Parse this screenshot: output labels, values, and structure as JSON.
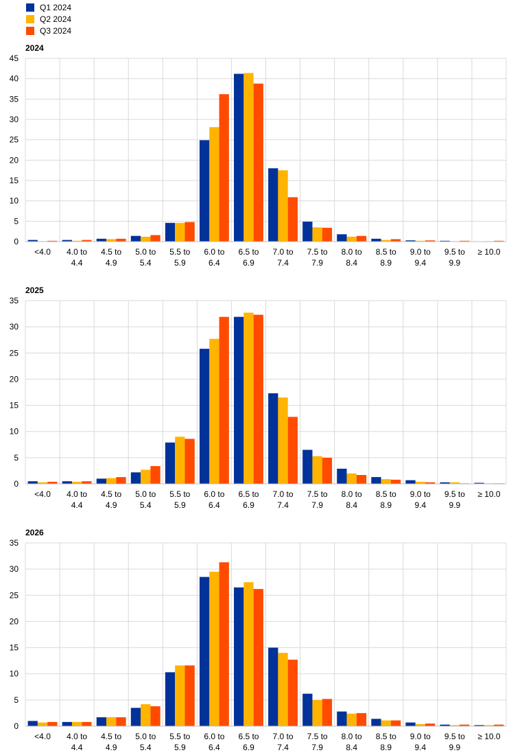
{
  "legend": [
    {
      "label": "Q1 2024",
      "color": "#003299"
    },
    {
      "label": "Q2 2024",
      "color": "#FFB400"
    },
    {
      "label": "Q3 2024",
      "color": "#FF4B00"
    }
  ],
  "chart_data": [
    {
      "type": "bar",
      "title": "2024",
      "categories": [
        "<4.0",
        "4.0 to\n4.4",
        "4.5 to\n4.9",
        "5.0 to\n5.4",
        "5.5 to\n5.9",
        "6.0 to\n6.4",
        "6.5 to\n6.9",
        "7.0 to\n7.4",
        "7.5 to\n7.9",
        "8.0 to\n8.4",
        "8.5 to\n8.9",
        "9.0 to\n9.4",
        "9.5 to\n9.9",
        "≥ 10.0"
      ],
      "series": [
        {
          "name": "Q1 2024",
          "values": [
            0.4,
            0.4,
            0.7,
            1.4,
            4.6,
            24.9,
            41.2,
            18.0,
            4.9,
            1.8,
            0.7,
            0.3,
            0.2,
            0.0
          ]
        },
        {
          "name": "Q2 2024",
          "values": [
            0.1,
            0.2,
            0.6,
            1.2,
            4.6,
            28.1,
            41.4,
            17.5,
            3.5,
            1.2,
            0.4,
            0.2,
            0.1,
            0.1
          ]
        },
        {
          "name": "Q3 2024",
          "values": [
            0.2,
            0.4,
            0.7,
            1.6,
            4.8,
            36.2,
            38.8,
            10.9,
            3.4,
            1.4,
            0.6,
            0.3,
            0.2,
            0.2
          ]
        }
      ],
      "yticks": [
        0,
        5,
        10,
        15,
        20,
        25,
        30,
        35,
        40,
        45
      ],
      "ylim": [
        0,
        45
      ],
      "grid": true
    },
    {
      "type": "bar",
      "title": "2025",
      "categories": [
        "<4.0",
        "4.0 to\n4.4",
        "4.5 to\n4.9",
        "5.0 to\n5.4",
        "5.5 to\n5.9",
        "6.0 to\n6.4",
        "6.5 to\n6.9",
        "7.0 to\n7.4",
        "7.5 to\n7.9",
        "8.0 to\n8.4",
        "8.5 to\n8.9",
        "9.0 to\n9.4",
        "9.5 to\n9.9",
        "≥ 10.0"
      ],
      "series": [
        {
          "name": "Q1 2024",
          "values": [
            0.5,
            0.5,
            1.0,
            2.2,
            7.9,
            25.8,
            31.9,
            17.3,
            6.5,
            2.9,
            1.3,
            0.7,
            0.3,
            0.2
          ]
        },
        {
          "name": "Q2 2024",
          "values": [
            0.3,
            0.4,
            1.1,
            2.7,
            9.0,
            27.7,
            32.7,
            16.5,
            5.3,
            2.0,
            0.9,
            0.4,
            0.3,
            0.1
          ]
        },
        {
          "name": "Q3 2024",
          "values": [
            0.4,
            0.5,
            1.3,
            3.4,
            8.6,
            31.9,
            32.3,
            12.8,
            5.0,
            1.7,
            0.8,
            0.3,
            0.1,
            0.1
          ]
        }
      ],
      "yticks": [
        0,
        5,
        10,
        15,
        20,
        25,
        30,
        35
      ],
      "ylim": [
        0,
        35
      ],
      "grid": true
    },
    {
      "type": "bar",
      "title": "2026",
      "categories": [
        "<4.0",
        "4.0 to\n4.4",
        "4.5 to\n4.9",
        "5.0 to\n5.4",
        "5.5 to\n5.9",
        "6.0 to\n6.4",
        "6.5 to\n6.9",
        "7.0 to\n7.4",
        "7.5 to\n7.9",
        "8.0 to\n8.4",
        "8.5 to\n8.9",
        "9.0 to\n9.4",
        "9.5 to\n9.9",
        "≥ 10.0"
      ],
      "series": [
        {
          "name": "Q1 2024",
          "values": [
            1.0,
            0.8,
            1.7,
            3.5,
            10.3,
            28.5,
            26.5,
            15.0,
            6.2,
            2.8,
            1.4,
            0.7,
            0.3,
            0.2
          ]
        },
        {
          "name": "Q2 2024",
          "values": [
            0.7,
            0.8,
            1.7,
            4.2,
            11.6,
            29.5,
            27.5,
            14.0,
            5.0,
            2.4,
            1.1,
            0.4,
            0.2,
            0.2
          ]
        },
        {
          "name": "Q3 2024",
          "values": [
            0.8,
            0.8,
            1.7,
            3.8,
            11.6,
            31.3,
            26.2,
            12.7,
            5.2,
            2.5,
            1.1,
            0.5,
            0.3,
            0.3
          ]
        }
      ],
      "yticks": [
        0,
        5,
        10,
        15,
        20,
        25,
        30,
        35
      ],
      "ylim": [
        0,
        35
      ],
      "grid": true
    }
  ]
}
